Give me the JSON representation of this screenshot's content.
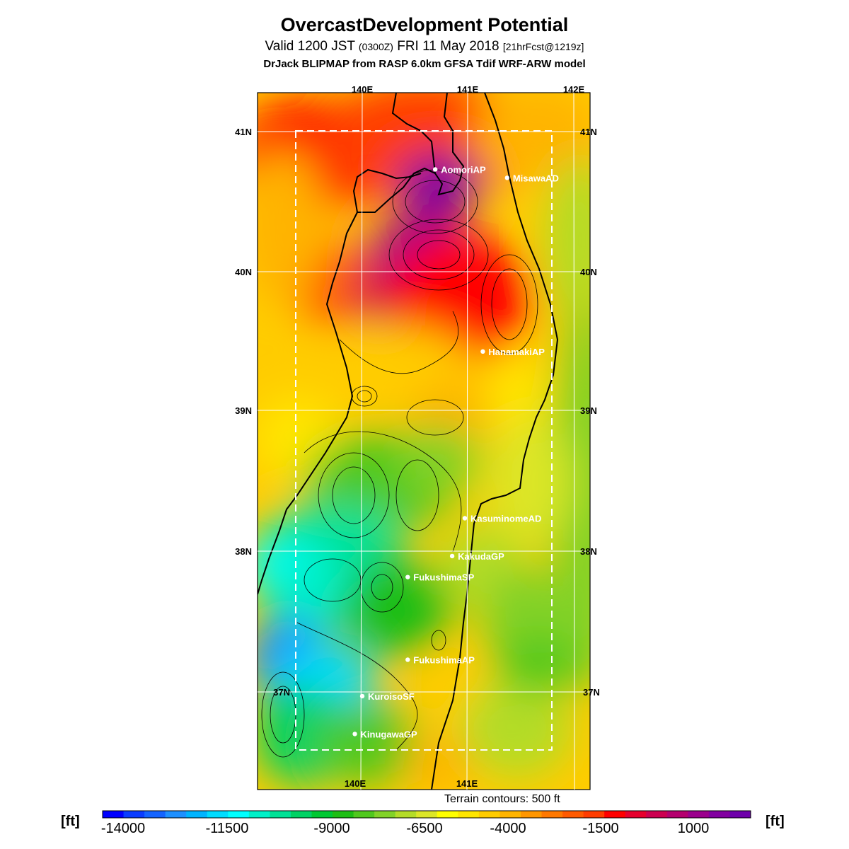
{
  "header": {
    "title": "OvercastDevelopment Potential",
    "valid_prefix": "Valid 1200 JST ",
    "valid_utc": "(0300Z)",
    "valid_date": " FRI 11 May 2018 ",
    "forecast": "[21hrFcst@1219z]",
    "model": "DrJack BLIPMAP from RASP 6.0km GFSA Tdif WRF-ARW model"
  },
  "axes": {
    "lon_top": [
      "140E",
      "141E",
      "142E"
    ],
    "lon_bottom": [
      "140E",
      "141E"
    ],
    "lat_left": [
      "41N",
      "40N",
      "39N",
      "38N",
      "37N"
    ],
    "lat_right": [
      "41N",
      "40N",
      "39N",
      "38N",
      "37N"
    ]
  },
  "stations": [
    {
      "name": "AomoriAP",
      "lon": 140.69,
      "lat": 40.73
    },
    {
      "name": "MisawaAD",
      "lon": 141.37,
      "lat": 40.67
    },
    {
      "name": "HanamakiAP",
      "lon": 141.14,
      "lat": 39.43
    },
    {
      "name": "KasuminomeAD",
      "lon": 140.97,
      "lat": 38.24
    },
    {
      "name": "KakudaGP",
      "lon": 140.85,
      "lat": 37.97
    },
    {
      "name": "FukushimaSP",
      "lon": 140.43,
      "lat": 37.82
    },
    {
      "name": "FukushimaAP",
      "lon": 140.43,
      "lat": 37.23
    },
    {
      "name": "KuroisoSF",
      "lon": 140.0,
      "lat": 36.97
    },
    {
      "name": "KinugawaGP",
      "lon": 139.93,
      "lat": 36.7
    }
  ],
  "legend": {
    "terrain_note": "Terrain contours: 500 ft",
    "unit_left": "[ft]",
    "unit_right": "[ft]",
    "tick_labels": [
      "-14000",
      "-11500",
      "-9000",
      "-6500",
      "-4000",
      "-1500",
      "1000"
    ],
    "colors": [
      "#0000ff",
      "#0a3cff",
      "#1464ff",
      "#1e90ff",
      "#00b4ff",
      "#00dcff",
      "#00ffff",
      "#00f0c8",
      "#00e196",
      "#00d264",
      "#00c832",
      "#1ebe14",
      "#50c81e",
      "#82d228",
      "#b4dc28",
      "#dce628",
      "#ffff00",
      "#ffe600",
      "#ffcc00",
      "#ffb400",
      "#ff9600",
      "#ff7800",
      "#ff5a00",
      "#ff3c00",
      "#ff0000",
      "#e6002d",
      "#cc0050",
      "#b4006e",
      "#9b008c",
      "#8200a0",
      "#6e00aa"
    ]
  },
  "colors": {
    "coast": "#000000",
    "grid": "#ffffff",
    "contour": "#000000"
  }
}
